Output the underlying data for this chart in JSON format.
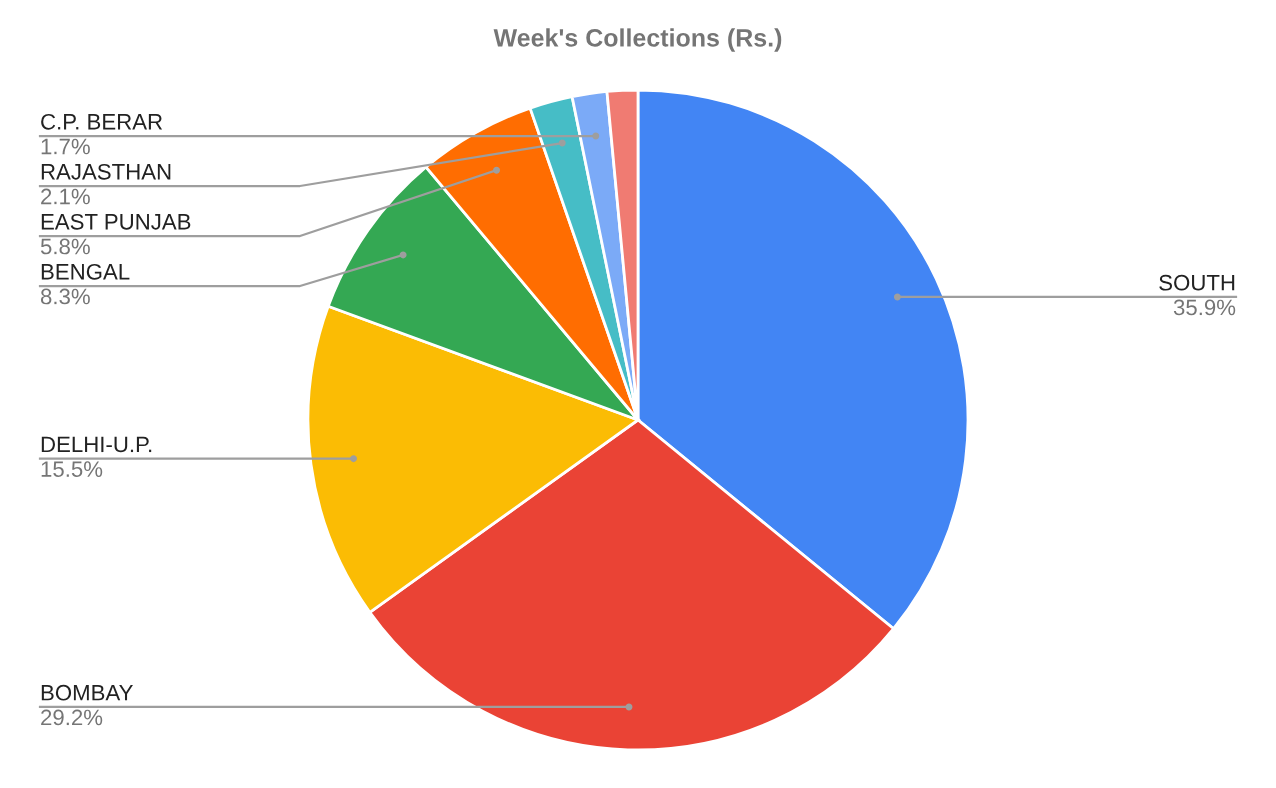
{
  "chart_data": {
    "type": "pie",
    "title": "Week's Collections (Rs.)",
    "categories": [
      "SOUTH",
      "BOMBAY",
      "DELHI-U.P.",
      "BENGAL",
      "EAST PUNJAB",
      "RAJASTHAN",
      "C.P. BERAR",
      null
    ],
    "values": [
      35.9,
      29.2,
      15.5,
      8.3,
      5.8,
      2.1,
      1.7,
      1.5
    ],
    "colors": [
      "#4285f4",
      "#ea4335",
      "#fbbc04",
      "#34a853",
      "#ff6d01",
      "#46bdc6",
      "#7baaf7",
      "#f07b72"
    ],
    "value_labels": [
      "35.9%",
      "29.2%",
      "15.5%",
      "8.3%",
      "5.8%",
      "2.1%",
      "1.7%",
      null
    ]
  }
}
